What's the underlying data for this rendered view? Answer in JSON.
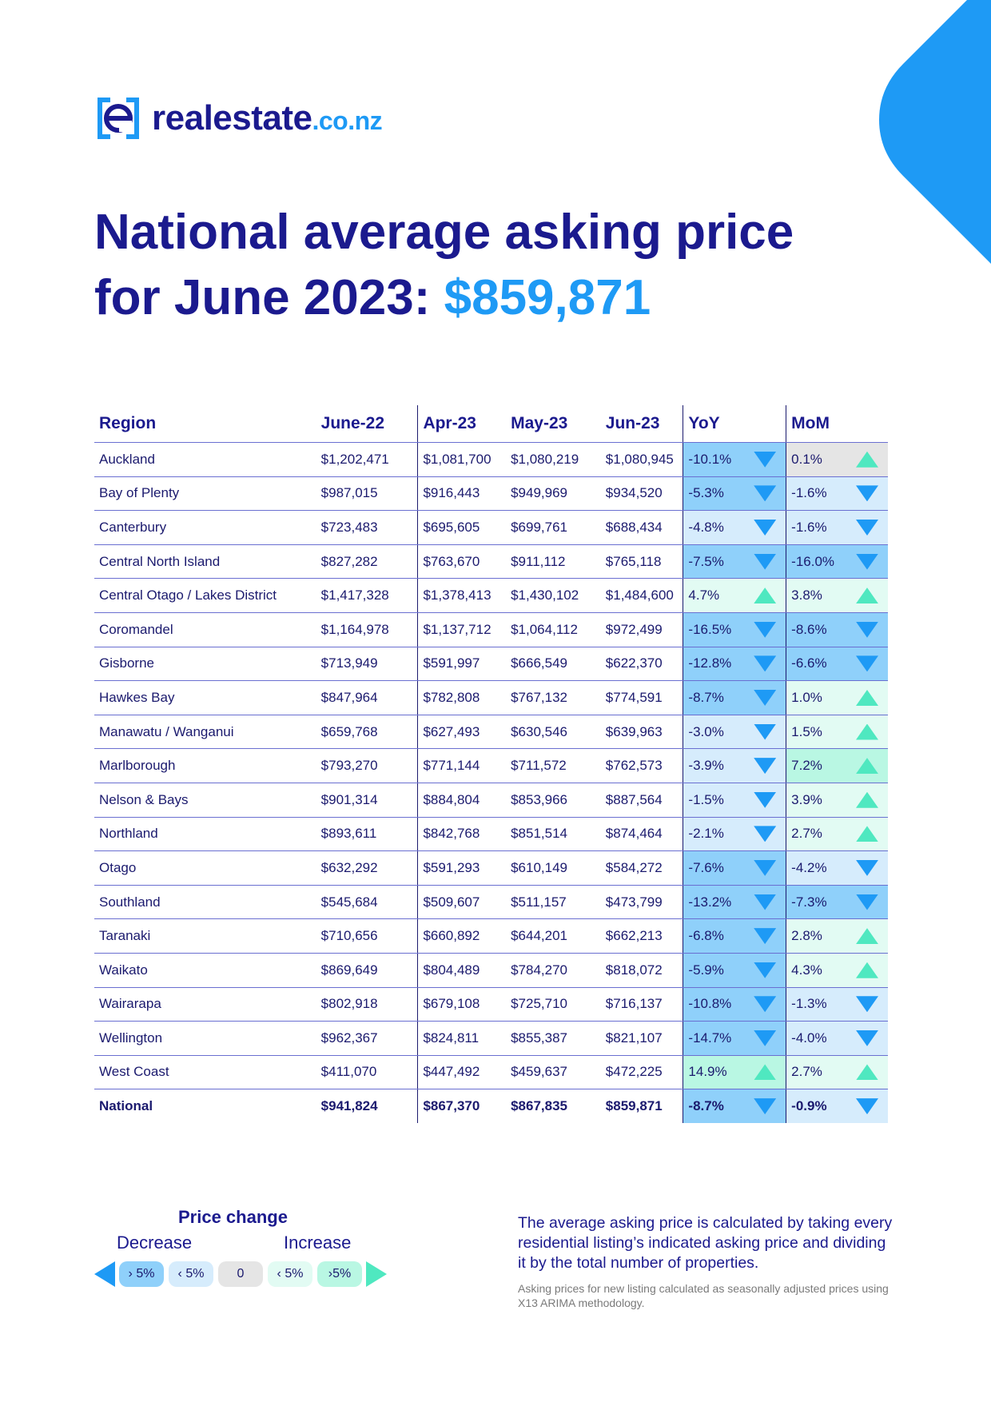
{
  "brand": {
    "name": "realestate",
    "tld": ".co.nz",
    "color": "#1b1a8e",
    "accent": "#1e9af5"
  },
  "title": {
    "line1": "National average asking price",
    "line2_prefix": "for June 2023: ",
    "price": "$859,871"
  },
  "table": {
    "headers": {
      "region": "Region",
      "jun22": "June-22",
      "apr23": "Apr-23",
      "may23": "May-23",
      "jun23": "Jun-23",
      "yoy": "YoY",
      "mom": "MoM"
    },
    "rows": [
      {
        "region": "Auckland",
        "jun22": "$1,202,471",
        "apr23": "$1,081,700",
        "may23": "$1,080,219",
        "jun23": "$1,080,945",
        "yoy": "-10.1%",
        "mom": "0.1%"
      },
      {
        "region": "Bay of Plenty",
        "jun22": "$987,015",
        "apr23": "$916,443",
        "may23": "$949,969",
        "jun23": "$934,520",
        "yoy": "-5.3%",
        "mom": "-1.6%"
      },
      {
        "region": "Canterbury",
        "jun22": "$723,483",
        "apr23": "$695,605",
        "may23": "$699,761",
        "jun23": "$688,434",
        "yoy": "-4.8%",
        "mom": "-1.6%"
      },
      {
        "region": "Central North Island",
        "jun22": "$827,282",
        "apr23": "$763,670",
        "may23": "$911,112",
        "jun23": "$765,118",
        "yoy": "-7.5%",
        "mom": "-16.0%"
      },
      {
        "region": "Central Otago / Lakes District",
        "jun22": "$1,417,328",
        "apr23": "$1,378,413",
        "may23": "$1,430,102",
        "jun23": "$1,484,600",
        "yoy": "4.7%",
        "mom": "3.8%"
      },
      {
        "region": "Coromandel",
        "jun22": "$1,164,978",
        "apr23": "$1,137,712",
        "may23": "$1,064,112",
        "jun23": "$972,499",
        "yoy": "-16.5%",
        "mom": "-8.6%"
      },
      {
        "region": "Gisborne",
        "jun22": "$713,949",
        "apr23": "$591,997",
        "may23": "$666,549",
        "jun23": "$622,370",
        "yoy": "-12.8%",
        "mom": "-6.6%"
      },
      {
        "region": "Hawkes Bay",
        "jun22": "$847,964",
        "apr23": "$782,808",
        "may23": "$767,132",
        "jun23": "$774,591",
        "yoy": "-8.7%",
        "mom": "1.0%"
      },
      {
        "region": "Manawatu / Wanganui",
        "jun22": "$659,768",
        "apr23": "$627,493",
        "may23": "$630,546",
        "jun23": "$639,963",
        "yoy": "-3.0%",
        "mom": "1.5%"
      },
      {
        "region": "Marlborough",
        "jun22": "$793,270",
        "apr23": "$771,144",
        "may23": "$711,572",
        "jun23": "$762,573",
        "yoy": "-3.9%",
        "mom": "7.2%"
      },
      {
        "region": "Nelson & Bays",
        "jun22": "$901,314",
        "apr23": "$884,804",
        "may23": "$853,966",
        "jun23": "$887,564",
        "yoy": "-1.5%",
        "mom": "3.9%"
      },
      {
        "region": "Northland",
        "jun22": "$893,611",
        "apr23": "$842,768",
        "may23": "$851,514",
        "jun23": "$874,464",
        "yoy": "-2.1%",
        "mom": "2.7%"
      },
      {
        "region": "Otago",
        "jun22": "$632,292",
        "apr23": "$591,293",
        "may23": "$610,149",
        "jun23": "$584,272",
        "yoy": "-7.6%",
        "mom": "-4.2%"
      },
      {
        "region": "Southland",
        "jun22": "$545,684",
        "apr23": "$509,607",
        "may23": "$511,157",
        "jun23": "$473,799",
        "yoy": "-13.2%",
        "mom": "-7.3%"
      },
      {
        "region": "Taranaki",
        "jun22": "$710,656",
        "apr23": "$660,892",
        "may23": "$644,201",
        "jun23": "$662,213",
        "yoy": "-6.8%",
        "mom": "2.8%"
      },
      {
        "region": "Waikato",
        "jun22": "$869,649",
        "apr23": "$804,489",
        "may23": "$784,270",
        "jun23": "$818,072",
        "yoy": "-5.9%",
        "mom": "4.3%"
      },
      {
        "region": "Wairarapa",
        "jun22": "$802,918",
        "apr23": "$679,108",
        "may23": "$725,710",
        "jun23": "$716,137",
        "yoy": "-10.8%",
        "mom": "-1.3%"
      },
      {
        "region": "Wellington",
        "jun22": "$962,367",
        "apr23": "$824,811",
        "may23": "$855,387",
        "jun23": "$821,107",
        "yoy": "-14.7%",
        "mom": "-4.0%"
      },
      {
        "region": "West Coast",
        "jun22": "$411,070",
        "apr23": "$447,492",
        "may23": "$459,637",
        "jun23": "$472,225",
        "yoy": "14.9%",
        "mom": "2.7%"
      },
      {
        "region": "National",
        "jun22": "$941,824",
        "apr23": "$867,370",
        "may23": "$867,835",
        "jun23": "$859,871",
        "yoy": "-8.7%",
        "mom": "-0.9%"
      }
    ]
  },
  "legend": {
    "title": "Price change",
    "decrease_label": "Decrease",
    "increase_label": "Increase",
    "pills": [
      {
        "label": "› 5%",
        "color": "#8fd0fa"
      },
      {
        "label": "‹ 5%",
        "color": "#d6ecfc"
      },
      {
        "label": "0",
        "color": "#e5e5e5"
      },
      {
        "label": "‹ 5%",
        "color": "#e2fbf3"
      },
      {
        "label": "›5%",
        "color": "#b9f7e3"
      }
    ]
  },
  "note": "The average asking price is calculated by taking every residential listing’s indicated asking price and dividing it by the total number of properties.",
  "footnote": "Asking prices for new listing calculated as seasonally adjusted prices using X13 ARIMA methodology."
}
